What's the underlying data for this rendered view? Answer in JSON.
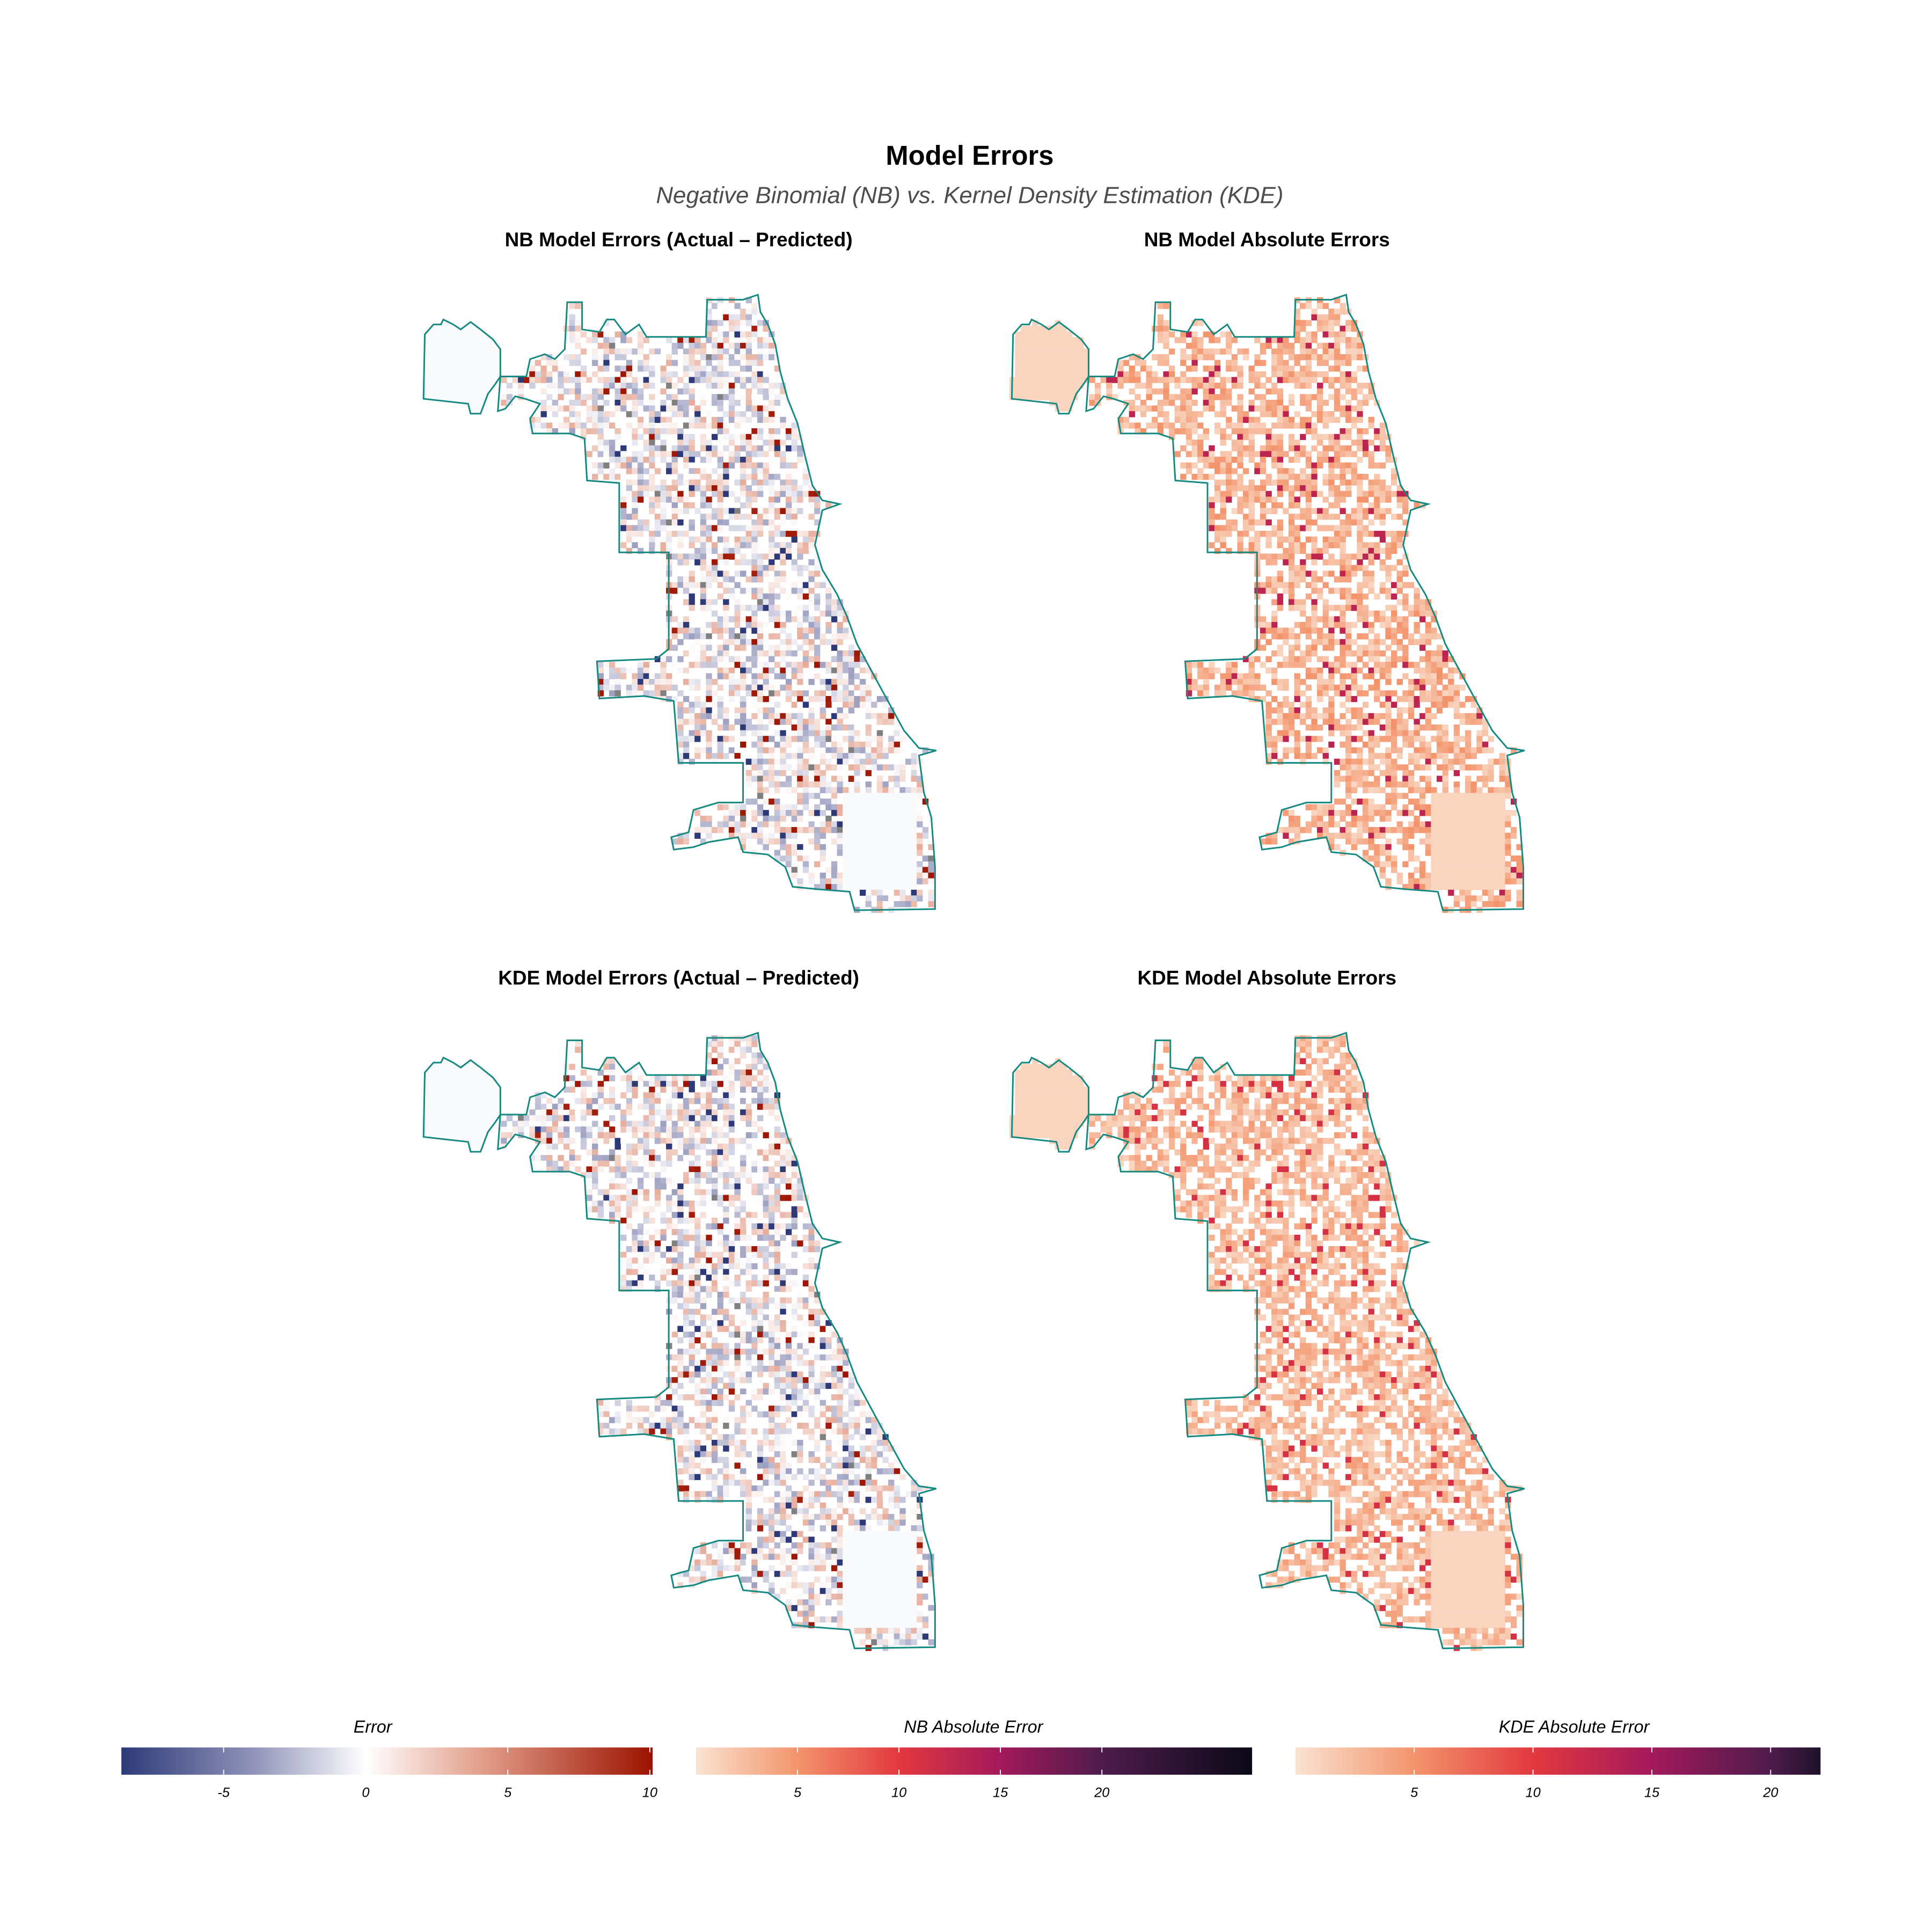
{
  "chart_data": {
    "type": "heatmap",
    "title": "Model Errors",
    "subtitle": "Negative Binomial (NB) vs. Kernel Density Estimation (KDE)",
    "panels": [
      {
        "title": "NB Model Errors (Actual – Predicted)",
        "colorbar": 0,
        "kind": "signed",
        "seed": 11
      },
      {
        "title": "NB Model Absolute Errors",
        "colorbar": 1,
        "kind": "absolute",
        "seed": 11
      },
      {
        "title": "KDE Model Errors (Actual – Predicted)",
        "colorbar": 0,
        "kind": "signed",
        "seed": 29
      },
      {
        "title": "KDE Model Absolute Errors",
        "colorbar": 2,
        "kind": "absolute",
        "seed": 29
      }
    ],
    "colorbars": [
      {
        "title": "Error",
        "range": [
          -8.6,
          10.1
        ],
        "ticks": [
          "-5",
          "0",
          "5",
          "10"
        ],
        "tick_values": [
          -5,
          0,
          5,
          10
        ],
        "colors": [
          [
            -8.6,
            "#2e3a78"
          ],
          [
            -4,
            "#8f92b8"
          ],
          [
            0,
            "#ffffff"
          ],
          [
            4,
            "#e3a08c"
          ],
          [
            10.1,
            "#9c1200"
          ]
        ]
      },
      {
        "title": "NB Absolute Error",
        "range": [
          0,
          27.4
        ],
        "ticks": [
          "5",
          "10",
          "15",
          "20"
        ],
        "tick_values": [
          5,
          10,
          15,
          20
        ],
        "colors": [
          [
            0,
            "#fae3d2"
          ],
          [
            5,
            "#f3946c"
          ],
          [
            10,
            "#e3383f"
          ],
          [
            15,
            "#a3195b"
          ],
          [
            20,
            "#4e1c4c"
          ],
          [
            27.4,
            "#0b0917"
          ]
        ]
      },
      {
        "title": "KDE Absolute Error",
        "range": [
          0,
          22.1
        ],
        "ticks": [
          "5",
          "10",
          "15",
          "20"
        ],
        "tick_values": [
          5,
          10,
          15,
          20
        ],
        "colors": [
          [
            0,
            "#fae3d2"
          ],
          [
            5,
            "#f3946c"
          ],
          [
            10,
            "#e3383f"
          ],
          [
            15,
            "#a3195b"
          ],
          [
            20,
            "#4e1c4c"
          ],
          [
            22.1,
            "#1e1229"
          ]
        ]
      }
    ],
    "boundary_color": "#168a80",
    "missing_color": "#808080"
  }
}
